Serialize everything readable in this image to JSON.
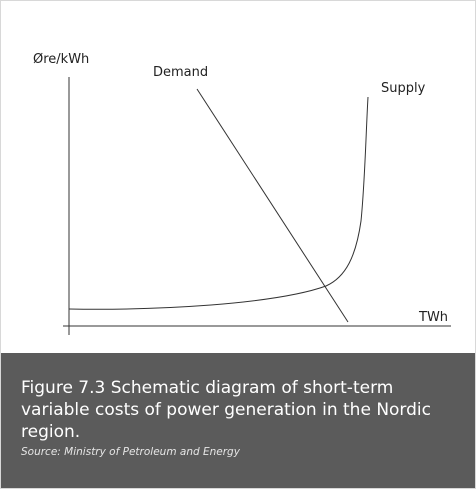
{
  "diagram": {
    "y_axis_label": "Øre/kWh",
    "x_axis_label": "TWh",
    "demand_label": "Demand",
    "supply_label": "Supply"
  },
  "caption": {
    "title": "Figure 7.3 Schematic diagram of short-term variable costs of power generation in the Nordic region.",
    "source": "Source: Ministry of Petroleum and Energy"
  }
}
